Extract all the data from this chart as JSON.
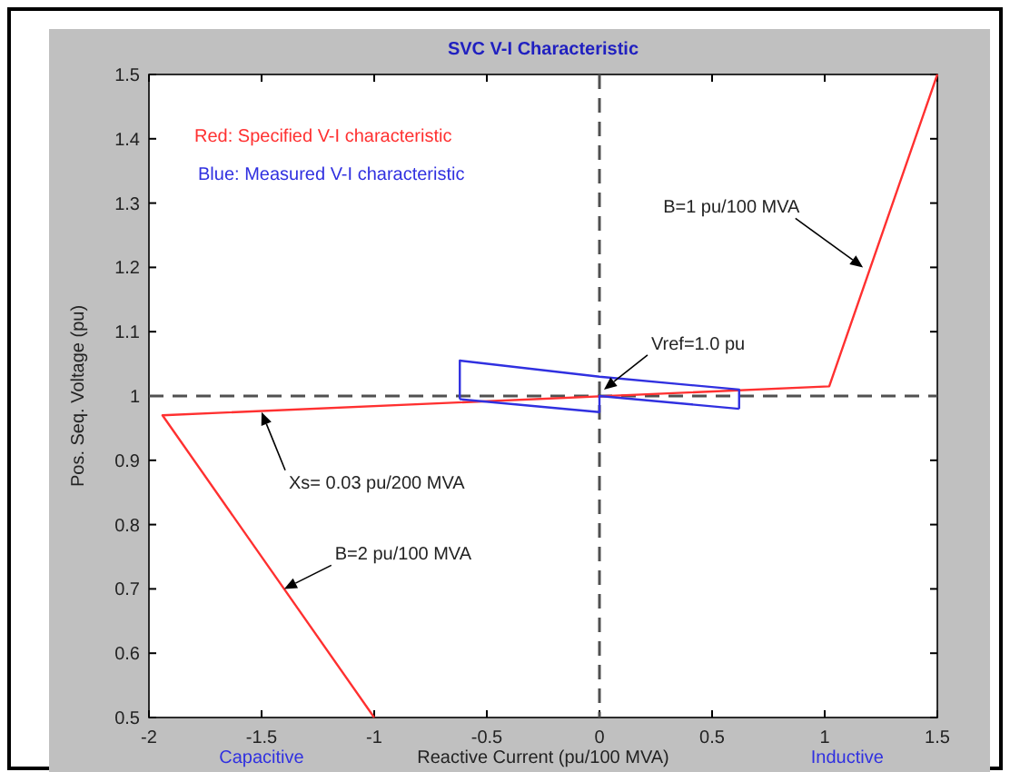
{
  "chart_data": {
    "type": "line",
    "title": "SVC V-I Characteristic",
    "xlabel": "Reactive Current (pu/100 MVA)",
    "ylabel": "Pos. Seq. Voltage (pu)",
    "xlim": [
      -2,
      1.5
    ],
    "ylim": [
      0.5,
      1.5
    ],
    "xticks": [
      -2,
      -1.5,
      -1,
      -0.5,
      0,
      0.5,
      1,
      1.5
    ],
    "yticks": [
      0.5,
      0.6,
      0.7,
      0.8,
      0.9,
      1,
      1.1,
      1.2,
      1.3,
      1.4,
      1.5
    ],
    "grid": false,
    "marker": "none",
    "line_style": "solid",
    "series": [
      {
        "color": "#ff3030",
        "x": [
          -1,
          -1.94,
          1.02,
          1.5
        ],
        "values": [
          0.5,
          0.97,
          1.015,
          1.5
        ]
      },
      {
        "color": "#3030e0",
        "x": [
          -0.62,
          -0.62,
          0,
          0.62,
          0.62
        ],
        "values": [
          0.995,
          1.055,
          1.03,
          1.01,
          0.98
        ]
      },
      {
        "color": "#3030e0",
        "x": [
          -0.62,
          0,
          0,
          0.62
        ],
        "values": [
          0.995,
          0.975,
          1.0,
          0.98
        ]
      }
    ],
    "ref_lines": [
      {
        "axis": "y",
        "value": 1,
        "color": "#505050",
        "line_style": "dashed"
      },
      {
        "axis": "x",
        "value": 0,
        "color": "#505050",
        "line_style": "dashed"
      }
    ],
    "annotations": [
      "Red: Specified V-I characteristic",
      "Blue: Measured V-I characteristic",
      {
        "text": "B=1 pu/100 MVA",
        "x": 1.17,
        "y": 1.2
      },
      {
        "text": "Vref=1.0 pu",
        "x": 0.02,
        "y": 1.01
      },
      {
        "text": "Xs= 0.03 pu/200 MVA",
        "x": -1.5,
        "y": 0.975
      },
      {
        "text": "B=2 pu/100 MVA",
        "x": -1.4,
        "y": 0.7
      },
      "Capacitive",
      "Inductive"
    ]
  }
}
